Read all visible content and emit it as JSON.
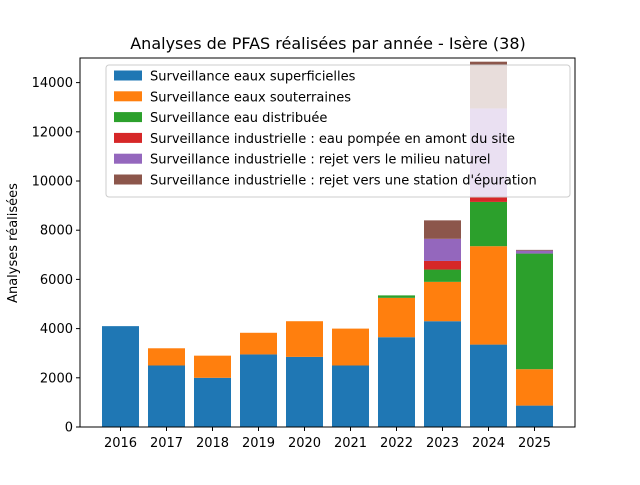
{
  "chart_data": {
    "type": "bar",
    "stacked": true,
    "title": "Analyses de PFAS réalisées par année - Isère (38)",
    "xlabel": "",
    "ylabel": "Analyses réalisées",
    "categories": [
      "2016",
      "2017",
      "2018",
      "2019",
      "2020",
      "2021",
      "2022",
      "2023",
      "2024",
      "2025"
    ],
    "ylim": [
      0,
      15000
    ],
    "yticks": [
      0,
      2000,
      4000,
      6000,
      8000,
      10000,
      12000,
      14000
    ],
    "legend_position": "top",
    "grid": false,
    "series": [
      {
        "name": "Surveillance eaux superficielles",
        "color": "#1f77b4",
        "values": [
          4100,
          2500,
          2000,
          2950,
          2850,
          2500,
          3650,
          4300,
          3350,
          870
        ]
      },
      {
        "name": "Surveillance eaux souterraines",
        "color": "#ff7f0e",
        "values": [
          0,
          700,
          900,
          880,
          1450,
          1500,
          1600,
          1600,
          4000,
          1480
        ]
      },
      {
        "name": "Surveillance eau distribuée",
        "color": "#2ca02c",
        "values": [
          0,
          0,
          0,
          0,
          0,
          0,
          100,
          500,
          1800,
          4700
        ]
      },
      {
        "name": "Surveillance industrielle : eau pompée en amont du site",
        "color": "#d62728",
        "values": [
          0,
          0,
          0,
          0,
          0,
          0,
          0,
          350,
          200,
          0
        ]
      },
      {
        "name": "Surveillance industrielle : rejet vers le milieu naturel",
        "color": "#9467bd",
        "values": [
          0,
          0,
          0,
          0,
          0,
          0,
          0,
          900,
          3600,
          120
        ]
      },
      {
        "name": "Surveillance industrielle : rejet vers une station d'épuration",
        "color": "#8c564b",
        "values": [
          0,
          0,
          0,
          0,
          0,
          0,
          0,
          750,
          1900,
          30
        ]
      }
    ]
  }
}
